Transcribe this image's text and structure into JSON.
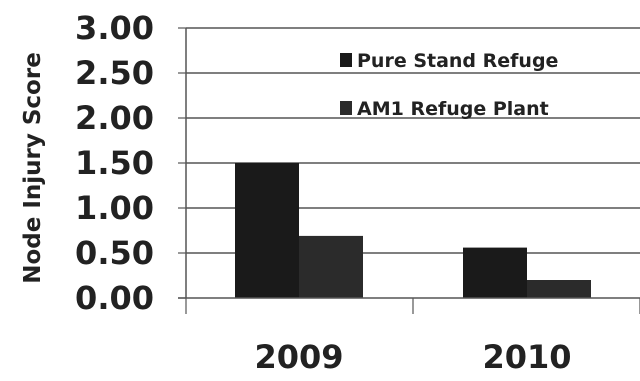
{
  "chart_data": {
    "type": "bar",
    "title": "",
    "xlabel": "",
    "ylabel": "Node Injury Score",
    "categories": [
      "2009",
      "2010"
    ],
    "series": [
      {
        "name": "Pure Stand Refuge",
        "values": [
          1.5,
          0.56
        ],
        "color": "#1a1a1a"
      },
      {
        "name": "AM1 Refuge Plant",
        "values": [
          0.69,
          0.2
        ],
        "color": "#2b2b2b"
      }
    ],
    "ylim": [
      0,
      3.0
    ],
    "yticks": [
      "0.00",
      "0.50",
      "1.00",
      "1.50",
      "2.00",
      "2.50",
      "3.00"
    ],
    "grid": true,
    "legend": "top-right"
  }
}
